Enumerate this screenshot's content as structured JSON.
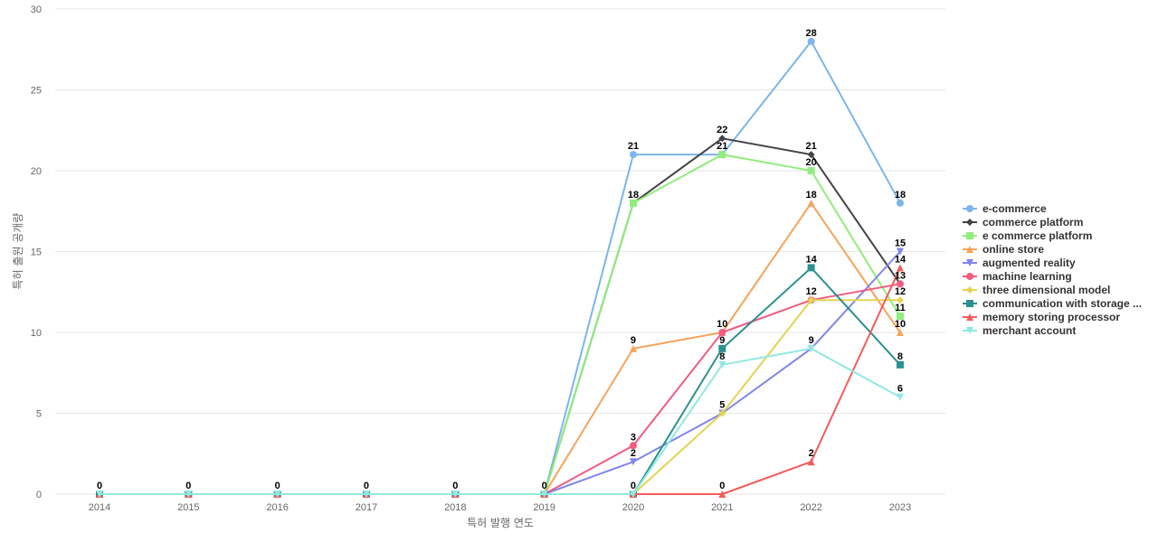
{
  "chart_data": {
    "type": "line",
    "title": "",
    "xlabel": "특허 발행 연도",
    "ylabel": "특허 출원 공개량",
    "x": [
      "2014",
      "2015",
      "2016",
      "2017",
      "2018",
      "2019",
      "2020",
      "2021",
      "2022",
      "2023"
    ],
    "ylim": [
      0,
      30
    ],
    "yticks": [
      0,
      5,
      10,
      15,
      20,
      25,
      30
    ],
    "grid": true,
    "legend_position": "right",
    "series": [
      {
        "name": "e-commerce",
        "color": "#7cb5ec",
        "marker": "circle",
        "values": [
          0,
          0,
          0,
          0,
          0,
          0,
          21,
          21,
          28,
          18
        ]
      },
      {
        "name": "commerce platform",
        "color": "#434348",
        "marker": "diamond",
        "values": [
          0,
          0,
          0,
          0,
          0,
          0,
          18,
          22,
          21,
          13
        ]
      },
      {
        "name": "e commerce platform",
        "color": "#90ed7d",
        "marker": "square",
        "values": [
          0,
          0,
          0,
          0,
          0,
          0,
          18,
          21,
          20,
          11
        ]
      },
      {
        "name": "online store",
        "color": "#f7a35c",
        "marker": "triangle",
        "values": [
          0,
          0,
          0,
          0,
          0,
          0,
          9,
          10,
          18,
          10
        ]
      },
      {
        "name": "augmented reality",
        "color": "#8085e9",
        "marker": "triangle-down",
        "values": [
          0,
          0,
          0,
          0,
          0,
          0,
          2,
          5,
          9,
          15
        ]
      },
      {
        "name": "machine learning",
        "color": "#f15c80",
        "marker": "circle",
        "values": [
          0,
          0,
          0,
          0,
          0,
          0,
          3,
          10,
          12,
          13
        ]
      },
      {
        "name": "three dimensional model",
        "color": "#e4d354",
        "marker": "diamond",
        "values": [
          0,
          0,
          0,
          0,
          0,
          0,
          0,
          5,
          12,
          12
        ]
      },
      {
        "name": "communication with storage ...",
        "color": "#2b908f",
        "marker": "square",
        "values": [
          0,
          0,
          0,
          0,
          0,
          0,
          0,
          9,
          14,
          8
        ]
      },
      {
        "name": "memory storing processor",
        "color": "#f45b5b",
        "marker": "triangle",
        "values": [
          0,
          0,
          0,
          0,
          0,
          0,
          0,
          0,
          2,
          14
        ]
      },
      {
        "name": "merchant account",
        "color": "#91e8e1",
        "marker": "triangle-down",
        "values": [
          0,
          0,
          0,
          0,
          0,
          0,
          0,
          8,
          9,
          6
        ]
      }
    ],
    "data_labels": [
      {
        "x": "2014",
        "value": 0
      },
      {
        "x": "2015",
        "value": 0
      },
      {
        "x": "2016",
        "value": 0
      },
      {
        "x": "2017",
        "value": 0
      },
      {
        "x": "2018",
        "value": 0
      },
      {
        "x": "2019",
        "value": 0
      },
      {
        "x": "2020",
        "value": 21
      },
      {
        "x": "2020",
        "value": 18
      },
      {
        "x": "2020",
        "value": 9
      },
      {
        "x": "2020",
        "value": 3
      },
      {
        "x": "2020",
        "value": 2
      },
      {
        "x": "2020",
        "value": 0
      },
      {
        "x": "2021",
        "value": 22
      },
      {
        "x": "2021",
        "value": 21
      },
      {
        "x": "2021",
        "value": 10
      },
      {
        "x": "2021",
        "value": 9
      },
      {
        "x": "2021",
        "value": 8
      },
      {
        "x": "2021",
        "value": 5
      },
      {
        "x": "2021",
        "value": 0
      },
      {
        "x": "2022",
        "value": 28
      },
      {
        "x": "2022",
        "value": 21
      },
      {
        "x": "2022",
        "value": 20
      },
      {
        "x": "2022",
        "value": 18
      },
      {
        "x": "2022",
        "value": 14
      },
      {
        "x": "2022",
        "value": 12
      },
      {
        "x": "2022",
        "value": 9
      },
      {
        "x": "2022",
        "value": 2
      },
      {
        "x": "2023",
        "value": 18
      },
      {
        "x": "2023",
        "value": 15
      },
      {
        "x": "2023",
        "value": 14
      },
      {
        "x": "2023",
        "value": 13
      },
      {
        "x": "2023",
        "value": 12
      },
      {
        "x": "2023",
        "value": 11
      },
      {
        "x": "2023",
        "value": 10
      },
      {
        "x": "2023",
        "value": 8
      },
      {
        "x": "2023",
        "value": 6
      }
    ]
  }
}
